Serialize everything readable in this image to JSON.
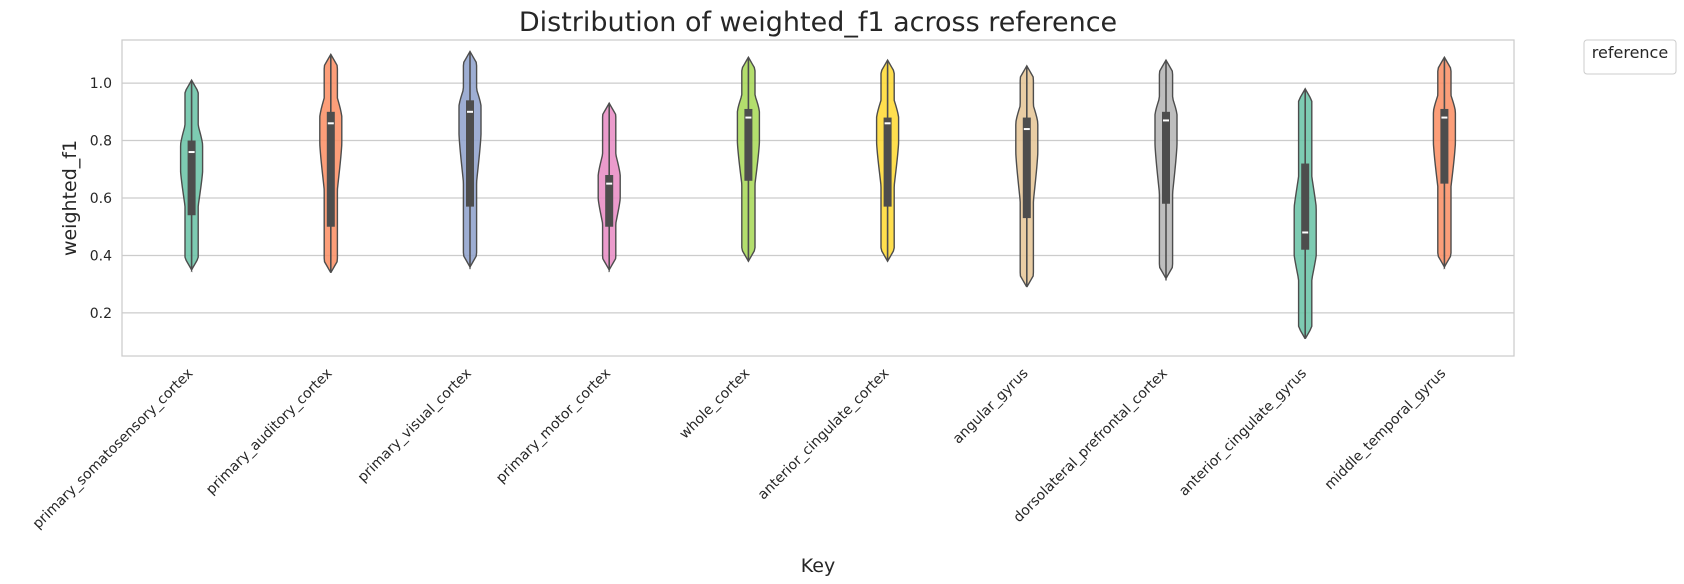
{
  "chart_data": {
    "type": "violin",
    "title": "Distribution of weighted_f1 across reference",
    "xlabel": "Key",
    "ylabel": "weighted_f1",
    "ylim": [
      0.05,
      1.15
    ],
    "yticks": [
      0.2,
      0.4,
      0.6,
      0.8,
      1.0
    ],
    "ytick_labels": [
      "0.2",
      "0.4",
      "0.6",
      "0.8",
      "1.0"
    ],
    "grid": true,
    "legend": {
      "title": "reference",
      "placement": "outside-top-right"
    },
    "categories": [
      "primary_somatosensory_cortex",
      "primary_auditory_cortex",
      "primary_visual_cortex",
      "primary_motor_cortex",
      "whole_cortex",
      "anterior_cingulate_cortex",
      "angular_gyrus",
      "dorsolateral_prefrontal_cortex",
      "anterior_cingulate_gyrus",
      "middle_temporal_gyrus"
    ],
    "violins": [
      {
        "color": "#66c2a5",
        "min": 0.35,
        "q1": 0.54,
        "median": 0.76,
        "q3": 0.8,
        "max": 1.01
      },
      {
        "color": "#fc8d62",
        "min": 0.34,
        "q1": 0.5,
        "median": 0.86,
        "q3": 0.9,
        "max": 1.1
      },
      {
        "color": "#8da0cb",
        "min": 0.36,
        "q1": 0.57,
        "median": 0.9,
        "q3": 0.94,
        "max": 1.11
      },
      {
        "color": "#e78ac3",
        "min": 0.35,
        "q1": 0.5,
        "median": 0.65,
        "q3": 0.68,
        "max": 0.93
      },
      {
        "color": "#a6d854",
        "min": 0.38,
        "q1": 0.66,
        "median": 0.88,
        "q3": 0.91,
        "max": 1.09
      },
      {
        "color": "#ffd92f",
        "min": 0.38,
        "q1": 0.57,
        "median": 0.86,
        "q3": 0.88,
        "max": 1.08
      },
      {
        "color": "#e5c494",
        "min": 0.29,
        "q1": 0.53,
        "median": 0.84,
        "q3": 0.88,
        "max": 1.06
      },
      {
        "color": "#b3b3b3",
        "min": 0.32,
        "q1": 0.58,
        "median": 0.87,
        "q3": 0.9,
        "max": 1.08
      },
      {
        "color": "#66c2a5",
        "min": 0.11,
        "q1": 0.42,
        "median": 0.48,
        "q3": 0.72,
        "max": 0.98
      },
      {
        "color": "#fc8d62",
        "min": 0.36,
        "q1": 0.65,
        "median": 0.88,
        "q3": 0.91,
        "max": 1.09
      }
    ]
  }
}
